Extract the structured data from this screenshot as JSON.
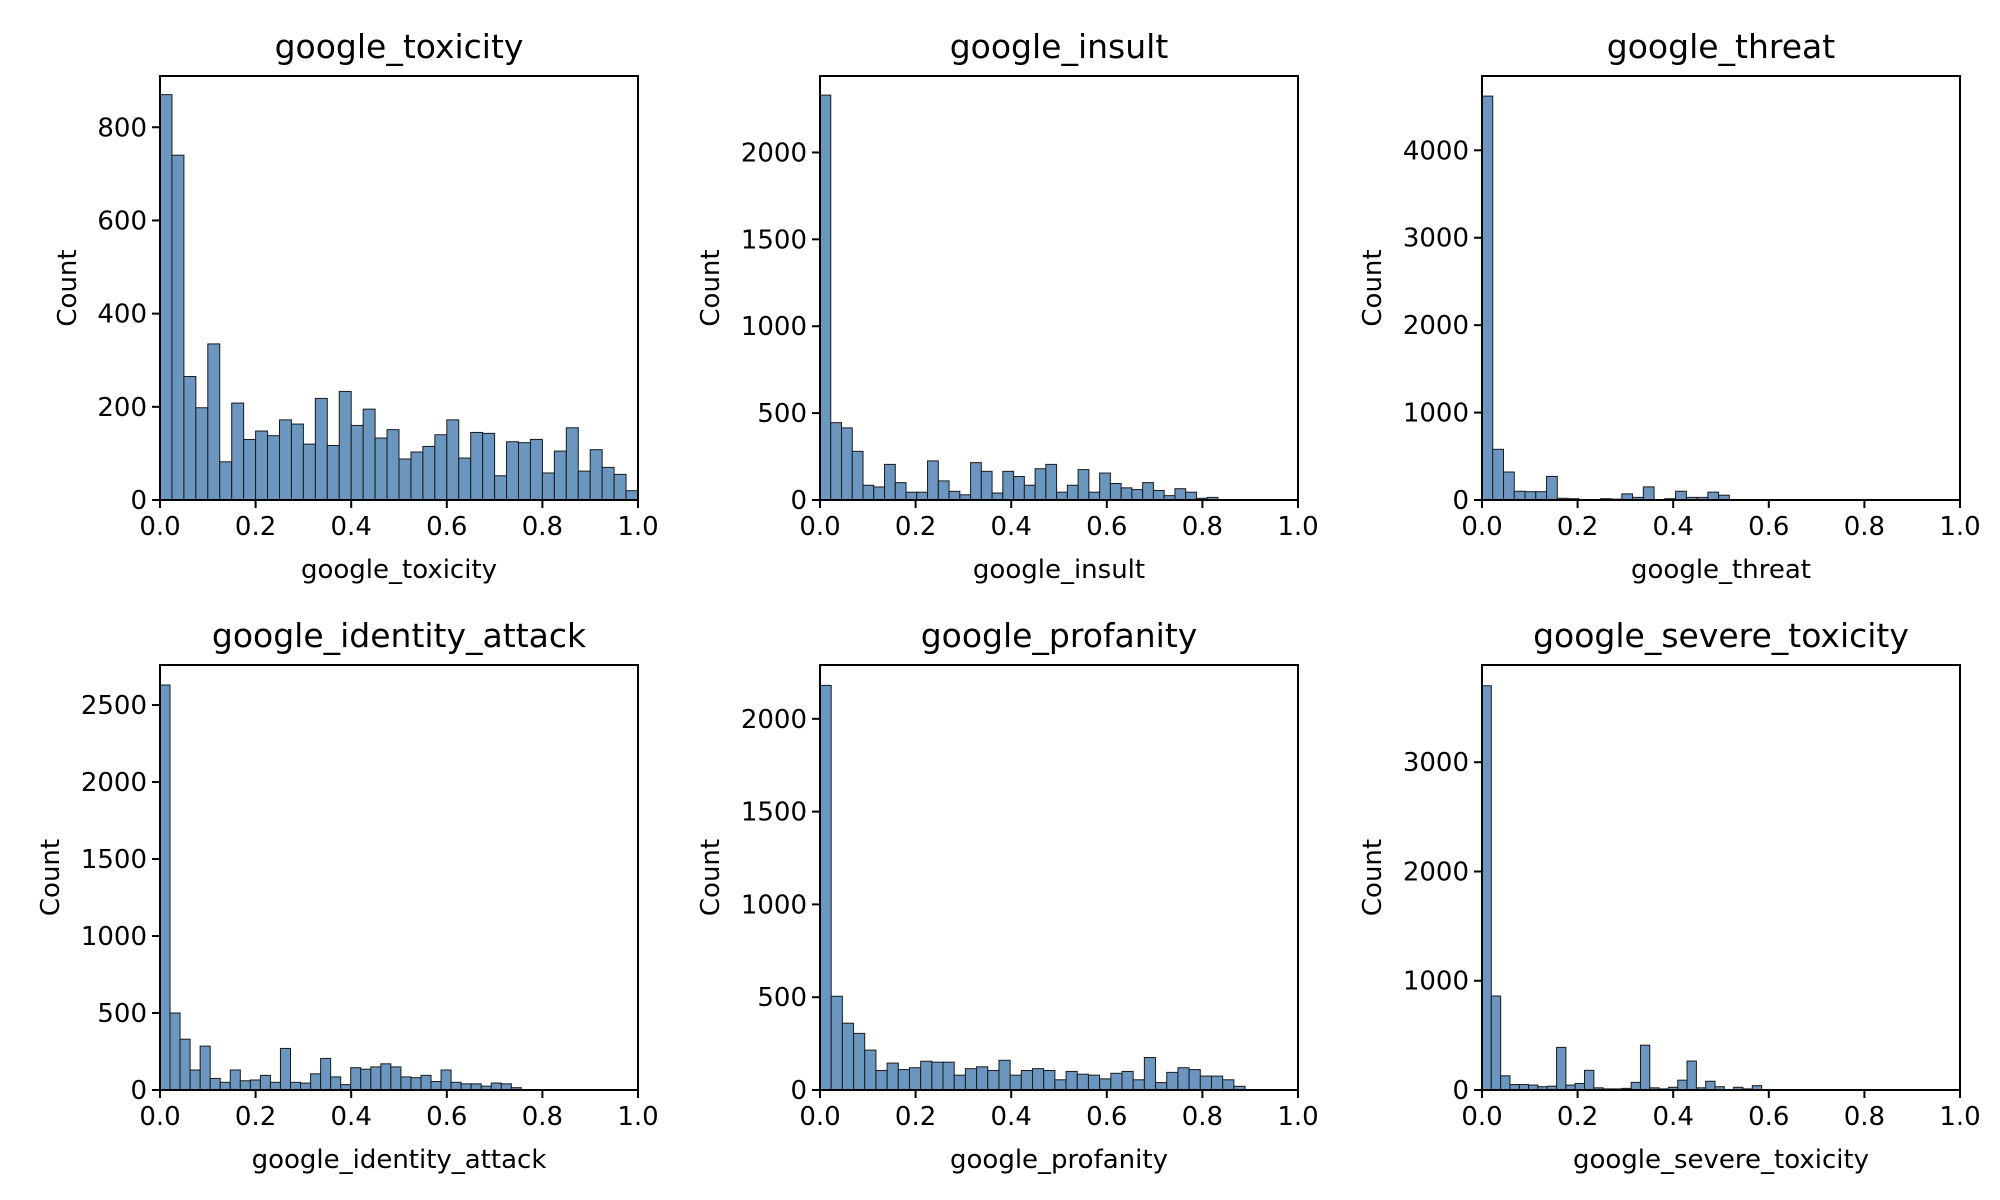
{
  "chart_data": [
    {
      "type": "bar",
      "title": "google_toxicity",
      "xlabel": "google_toxicity",
      "ylabel": "Count",
      "xlim": [
        0,
        1
      ],
      "ylim": [
        0,
        910
      ],
      "grid": false,
      "bin_width": 0.025,
      "xticks": [
        "0.0",
        "0.2",
        "0.4",
        "0.6",
        "0.8",
        "1.0"
      ],
      "yticks": [
        0,
        200,
        400,
        600,
        800
      ],
      "values": [
        870,
        740,
        265,
        198,
        335,
        82,
        208,
        130,
        148,
        138,
        172,
        163,
        120,
        218,
        117,
        233,
        160,
        195,
        133,
        151,
        88,
        103,
        115,
        140,
        172,
        90,
        145,
        143,
        52,
        125,
        123,
        130,
        58,
        105,
        155,
        62,
        108,
        70,
        55,
        20
      ],
      "color": "#6b96c0"
    },
    {
      "type": "bar",
      "title": "google_insult",
      "xlabel": "google_insult",
      "ylabel": "Count",
      "xlim": [
        0,
        1
      ],
      "ylim": [
        0,
        2440
      ],
      "grid": false,
      "bin_width": 0.0225,
      "xticks": [
        "0.0",
        "0.2",
        "0.4",
        "0.6",
        "0.8",
        "1.0"
      ],
      "yticks": [
        0,
        500,
        1000,
        1500,
        2000
      ],
      "values": [
        2330,
        445,
        415,
        280,
        85,
        75,
        205,
        100,
        45,
        45,
        225,
        110,
        50,
        30,
        215,
        165,
        40,
        165,
        135,
        85,
        180,
        205,
        45,
        85,
        175,
        45,
        155,
        95,
        70,
        60,
        100,
        55,
        25,
        65,
        45,
        10,
        15,
        0
      ],
      "color": "#6b96c0"
    },
    {
      "type": "bar",
      "title": "google_threat",
      "xlabel": "google_threat",
      "ylabel": "Count",
      "xlim": [
        0,
        1
      ],
      "ylim": [
        0,
        4850
      ],
      "grid": false,
      "bin_width": 0.0225,
      "xticks": [
        "0.0",
        "0.2",
        "0.4",
        "0.6",
        "0.8",
        "1.0"
      ],
      "yticks": [
        0,
        1000,
        2000,
        3000,
        4000
      ],
      "values": [
        4620,
        580,
        320,
        100,
        95,
        95,
        270,
        20,
        15,
        5,
        5,
        15,
        10,
        70,
        30,
        150,
        0,
        15,
        100,
        30,
        30,
        90,
        55
      ],
      "color": "#6b96c0"
    },
    {
      "type": "bar",
      "title": "google_identity_attack",
      "xlabel": "google_identity_attack",
      "ylabel": "Count",
      "xlim": [
        0,
        1
      ],
      "ylim": [
        0,
        2760
      ],
      "grid": false,
      "bin_width": 0.021,
      "xticks": [
        "0.0",
        "0.2",
        "0.4",
        "0.6",
        "0.8",
        "1.0"
      ],
      "yticks": [
        0,
        500,
        1000,
        1500,
        2000,
        2500
      ],
      "values": [
        2630,
        500,
        330,
        130,
        285,
        75,
        50,
        130,
        60,
        65,
        95,
        50,
        270,
        50,
        45,
        105,
        205,
        85,
        35,
        145,
        135,
        150,
        170,
        150,
        85,
        80,
        95,
        55,
        130,
        50,
        40,
        40,
        25,
        45,
        40,
        15
      ],
      "color": "#6b96c0"
    },
    {
      "type": "bar",
      "title": "google_profanity",
      "xlabel": "google_profanity",
      "ylabel": "Count",
      "xlim": [
        0,
        1
      ],
      "ylim": [
        0,
        2290
      ],
      "grid": false,
      "bin_width": 0.0234,
      "xticks": [
        "0.0",
        "0.2",
        "0.4",
        "0.6",
        "0.8",
        "1.0"
      ],
      "yticks": [
        0,
        500,
        1000,
        1500,
        2000
      ],
      "values": [
        2180,
        505,
        360,
        305,
        215,
        105,
        145,
        110,
        120,
        155,
        150,
        150,
        80,
        115,
        125,
        105,
        160,
        80,
        105,
        115,
        105,
        55,
        100,
        85,
        80,
        60,
        90,
        100,
        55,
        175,
        40,
        95,
        120,
        110,
        75,
        75,
        55,
        20
      ],
      "color": "#6b96c0"
    },
    {
      "type": "bar",
      "title": "google_severe_toxicity",
      "xlabel": "google_severe_toxicity",
      "ylabel": "Count",
      "xlim": [
        0,
        1
      ],
      "ylim": [
        0,
        3890
      ],
      "grid": false,
      "bin_width": 0.0195,
      "xticks": [
        "0.0",
        "0.2",
        "0.4",
        "0.6",
        "0.8",
        "1.0"
      ],
      "yticks": [
        0,
        1000,
        2000,
        3000
      ],
      "values": [
        3700,
        860,
        130,
        50,
        50,
        45,
        30,
        35,
        390,
        45,
        60,
        180,
        20,
        10,
        10,
        15,
        70,
        410,
        20,
        10,
        25,
        90,
        265,
        20,
        80,
        30,
        5,
        25,
        10,
        40
      ],
      "color": "#6b96c0"
    }
  ]
}
